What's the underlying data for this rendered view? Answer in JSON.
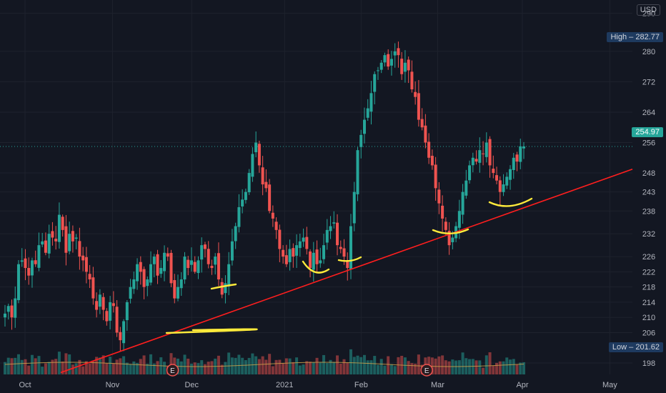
{
  "currency_label": "USD",
  "chart_data": {
    "type": "candlestick",
    "y_range": [
      195,
      292
    ],
    "y_ticks": [
      198,
      206,
      210,
      214,
      218,
      222,
      226,
      232,
      238,
      243,
      248,
      256,
      264,
      272,
      280,
      290
    ],
    "x_ticks": [
      {
        "label": "Oct",
        "date": "2020-10-01"
      },
      {
        "label": "Nov",
        "date": "2020-11-02"
      },
      {
        "label": "Dec",
        "date": "2020-12-01"
      },
      {
        "label": "2021",
        "date": "2021-01-04"
      },
      {
        "label": "Feb",
        "date": "2021-02-01"
      },
      {
        "label": "Mar",
        "date": "2021-03-01"
      },
      {
        "label": "Apr",
        "date": "2021-04-01"
      },
      {
        "label": "May",
        "date": "2021-05-03"
      }
    ],
    "high_label": "High",
    "high_value": "282.77",
    "low_label": "Low",
    "low_value": "201.62",
    "last_price": "254.97",
    "earnings_marker": "E",
    "earnings_dates": [
      "2020-11-24",
      "2021-02-25"
    ],
    "up_color": "#26a69a",
    "down_color": "#ef5350",
    "trendline_color": "#ff1e1e",
    "highlight_color": "#ffeb3b",
    "closes": [
      211,
      213,
      210,
      215,
      224,
      225,
      223,
      221,
      225,
      224,
      229,
      230,
      227,
      232,
      231,
      230,
      237,
      233,
      227,
      232,
      230,
      231,
      226,
      225,
      222,
      220,
      215,
      212,
      216,
      212,
      209,
      214,
      213,
      206,
      204,
      209,
      214,
      218,
      220,
      224,
      222,
      218,
      220,
      224,
      226,
      221,
      223,
      227,
      226,
      219,
      215,
      218,
      220,
      226,
      223,
      225,
      222,
      225,
      229,
      228,
      224,
      223,
      226,
      220,
      216,
      219,
      224,
      230,
      234,
      239,
      241,
      243,
      248,
      253,
      256,
      250,
      245,
      244,
      238,
      236,
      233,
      228,
      226,
      224,
      228,
      226,
      229,
      230,
      231,
      228,
      223,
      227,
      224,
      225,
      229,
      233,
      234,
      235,
      229,
      228,
      226,
      223,
      234,
      243,
      254,
      258,
      262,
      265,
      269,
      274,
      275,
      277,
      279,
      276,
      278,
      280,
      279,
      274,
      277,
      275,
      270,
      268,
      262,
      260,
      256,
      252,
      250,
      244,
      240,
      236,
      233,
      229,
      231,
      234,
      238,
      243,
      246,
      250,
      252,
      251,
      254,
      253,
      256,
      250,
      248,
      246,
      243,
      245,
      247,
      249,
      252,
      251,
      255,
      254.97
    ]
  }
}
